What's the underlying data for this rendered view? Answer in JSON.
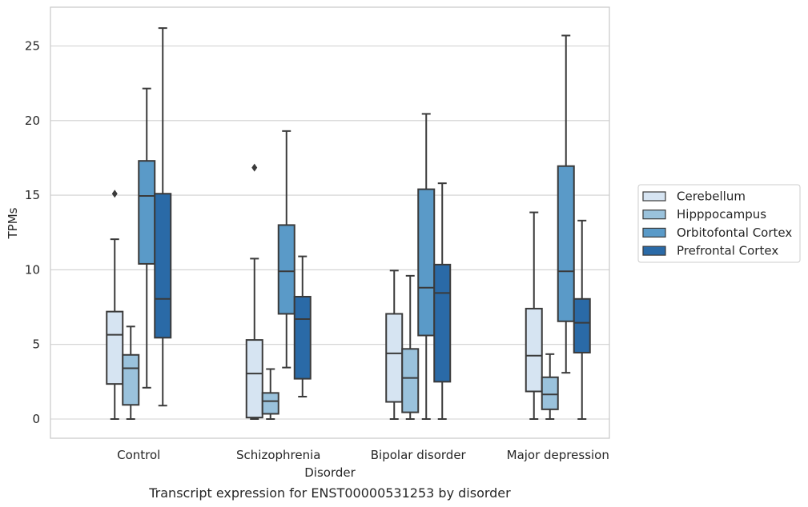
{
  "chart_data": {
    "type": "box",
    "caption": "Transcript expression for ENST00000531253 by disorder",
    "xlabel": "Disorder",
    "ylabel": "TPMs",
    "ylim": [
      -1.2,
      27.0
    ],
    "yticks": [
      0,
      5,
      10,
      15,
      20,
      25
    ],
    "grid": "horizontal",
    "legend_position": "right",
    "categories": [
      "Control",
      "Schizophrenia",
      "Bipolar disorder",
      "Major depression"
    ],
    "series": [
      {
        "name": "Cerebellum",
        "color": "#d6e4f2",
        "boxes": [
          {
            "whislo": 0.0,
            "q1": 2.35,
            "med": 5.65,
            "q3": 7.2,
            "whishi": 12.05,
            "fliers": [
              15.1
            ]
          },
          {
            "whislo": 0.0,
            "q1": 0.1,
            "med": 3.05,
            "q3": 5.3,
            "whishi": 10.75,
            "fliers": [
              16.85
            ]
          },
          {
            "whislo": 0.0,
            "q1": 1.15,
            "med": 4.4,
            "q3": 7.05,
            "whishi": 9.95,
            "fliers": []
          },
          {
            "whislo": 0.0,
            "q1": 1.85,
            "med": 4.25,
            "q3": 7.4,
            "whishi": 13.85,
            "fliers": []
          }
        ]
      },
      {
        "name": "Hipppocampus",
        "color": "#9ac2dc",
        "boxes": [
          {
            "whislo": 0.0,
            "q1": 0.95,
            "med": 3.4,
            "q3": 4.3,
            "whishi": 6.2,
            "fliers": []
          },
          {
            "whislo": 0.0,
            "q1": 0.35,
            "med": 1.2,
            "q3": 1.75,
            "whishi": 3.35,
            "fliers": []
          },
          {
            "whislo": 0.0,
            "q1": 0.45,
            "med": 2.75,
            "q3": 4.7,
            "whishi": 9.6,
            "fliers": []
          },
          {
            "whislo": 0.0,
            "q1": 0.65,
            "med": 1.65,
            "q3": 2.8,
            "whishi": 4.35,
            "fliers": []
          }
        ]
      },
      {
        "name": "Orbitofontal Cortex",
        "color": "#5a9ac8",
        "boxes": [
          {
            "whislo": 2.1,
            "q1": 10.4,
            "med": 14.95,
            "q3": 17.3,
            "whishi": 22.15,
            "fliers": []
          },
          {
            "whislo": 3.45,
            "q1": 7.05,
            "med": 9.9,
            "q3": 13.0,
            "whishi": 19.3,
            "fliers": []
          },
          {
            "whislo": 0.0,
            "q1": 5.6,
            "med": 8.8,
            "q3": 15.4,
            "whishi": 20.45,
            "fliers": []
          },
          {
            "whislo": 3.1,
            "q1": 6.55,
            "med": 9.9,
            "q3": 16.95,
            "whishi": 25.7,
            "fliers": []
          }
        ]
      },
      {
        "name": "Prefrontal Cortex",
        "color": "#2a6aa7",
        "boxes": [
          {
            "whislo": 0.9,
            "q1": 5.45,
            "med": 8.05,
            "q3": 15.1,
            "whishi": 26.2,
            "fliers": []
          },
          {
            "whislo": 1.5,
            "q1": 2.7,
            "med": 6.7,
            "q3": 8.2,
            "whishi": 10.9,
            "fliers": []
          },
          {
            "whislo": 0.0,
            "q1": 2.5,
            "med": 8.45,
            "q3": 10.35,
            "whishi": 15.8,
            "fliers": []
          },
          {
            "whislo": 0.0,
            "q1": 4.45,
            "med": 6.45,
            "q3": 8.05,
            "whishi": 13.3,
            "fliers": []
          }
        ]
      }
    ]
  },
  "colors": {
    "edge": "#3a3a3a",
    "grid": "#d0d0d0",
    "frame": "#cccccc"
  }
}
